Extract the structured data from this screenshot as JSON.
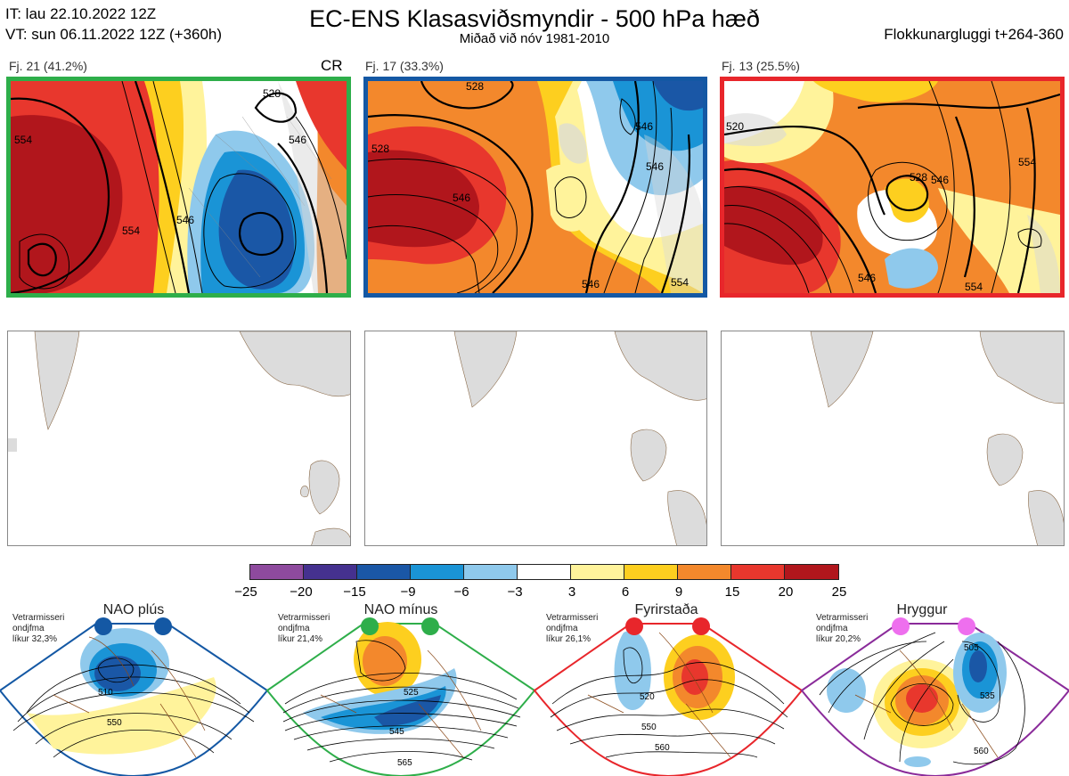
{
  "header": {
    "init_time": "IT: lau 22.10.2022 12Z",
    "valid_time": "VT: sun 06.11.2022 12Z  (+360h)",
    "title": "EC-ENS Klasasviðsmyndir - 500 hPa hæð",
    "subtitle": "Miðað við nóv 1981-2010",
    "window": "Flokkunargluggi t+264-360"
  },
  "clusters": [
    {
      "label": "Fj. 21 (41.2%)",
      "tag": "CR",
      "border_color": "#2eae4a",
      "contours": [
        "528",
        "546",
        "554",
        "554",
        "546"
      ]
    },
    {
      "label": "Fj. 17 (33.3%)",
      "tag": "",
      "border_color": "#1458a4",
      "contours": [
        "528",
        "546",
        "528",
        "546",
        "546",
        "554",
        "546"
      ]
    },
    {
      "label": "Fj. 13 (25.5%)",
      "tag": "",
      "border_color": "#e8262b",
      "contours": [
        "520",
        "528",
        "546",
        "554",
        "546",
        "554"
      ]
    }
  ],
  "legend": {
    "ticks": [
      "−25",
      "−20",
      "−15",
      "−9",
      "−6",
      "−3",
      "3",
      "6",
      "9",
      "15",
      "20",
      "25"
    ],
    "colors": [
      "#8e4a9e",
      "#45318f",
      "#1a57a6",
      "#1a94d6",
      "#8fc9ec",
      "#ffffff",
      "#fff39b",
      "#fdcf1f",
      "#f3882c",
      "#e8372d",
      "#b1161c"
    ]
  },
  "regimes": [
    {
      "name": "NAO plús",
      "note": [
        "Vetrarmisseri",
        "ondjfma",
        "líkur 32,3%"
      ],
      "border_color": "#1458a4",
      "dot_color": "#1458a4",
      "contours": [
        "510",
        "550"
      ]
    },
    {
      "name": "NAO mínus",
      "note": [
        "Vetrarmisseri",
        "ondjfma",
        "líkur 21,4%"
      ],
      "border_color": "#2eae4a",
      "dot_color": "#2eae4a",
      "contours": [
        "525",
        "545",
        "565"
      ]
    },
    {
      "name": "Fyrirstaða",
      "note": [
        "Vetrarmisseri",
        "ondjfma",
        "líkur 26,1%"
      ],
      "border_color": "#e8262b",
      "dot_color": "#e8262b",
      "contours": [
        "520",
        "550",
        "560"
      ]
    },
    {
      "name": "Hryggur",
      "note": [
        "Vetrarmisseri",
        "ondjfma",
        "líkur 20,2%"
      ],
      "border_color": "#8a2b9a",
      "dot_color": "#ee6fee",
      "contours": [
        "505",
        "535",
        "560"
      ]
    }
  ]
}
